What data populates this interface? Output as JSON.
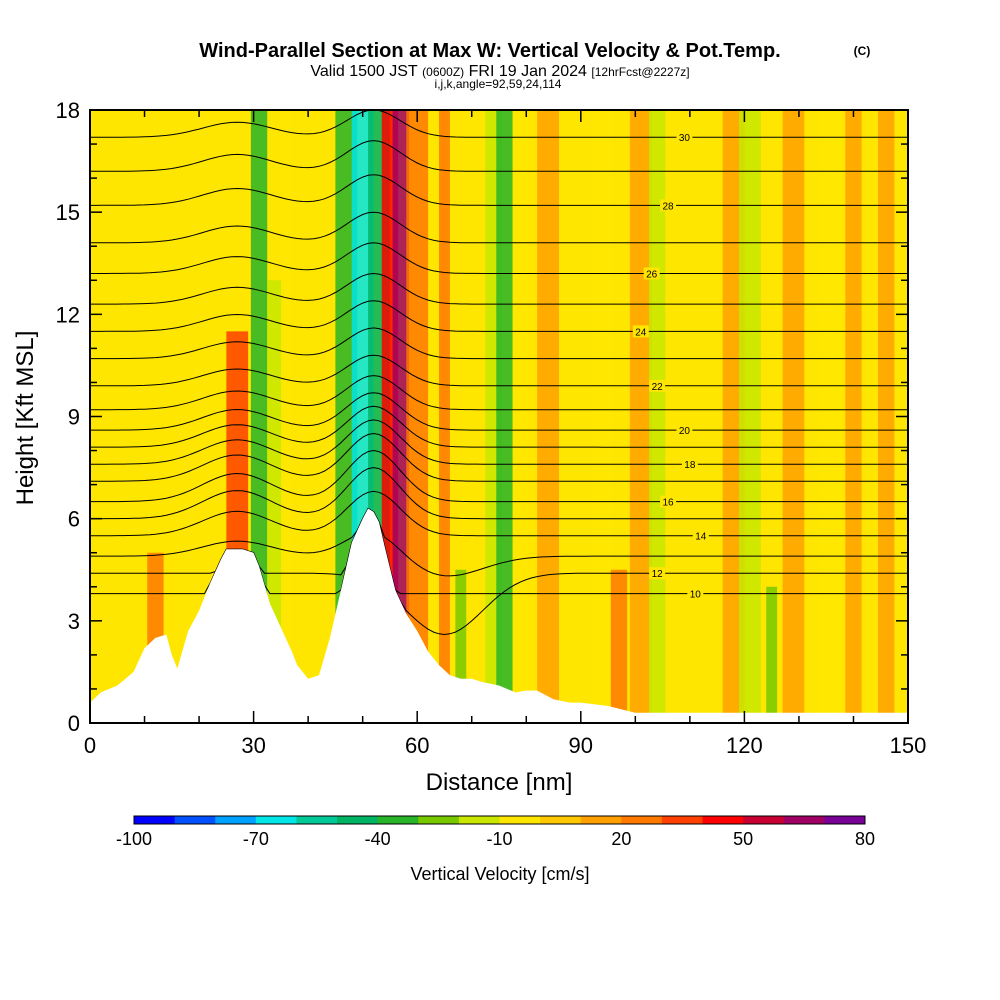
{
  "title": {
    "main": "Wind-Parallel Section at Max W: Vertical Velocity & Pot.Temp.",
    "copyright": "(C)",
    "valid_prefix": "Valid 1500 JST",
    "valid_z": "(0600Z)",
    "valid_date": "FRI 19 Jan 2024",
    "forecast": "[12hrFcst@2227z]",
    "ijk": "i,j,k,angle=92,59,24,114"
  },
  "colors": {
    "background_field": "#ffe600",
    "terrain": "#ffffff",
    "contour": "#000000",
    "frame": "#000000"
  },
  "chart_data": {
    "type": "heatmap",
    "xlabel": "Distance [nm]",
    "ylabel": "Height [Kft MSL]",
    "xlim": [
      0,
      150
    ],
    "ylim": [
      0,
      18
    ],
    "x_ticks": [
      "0",
      "30",
      "60",
      "90",
      "120",
      "150"
    ],
    "y_ticks": [
      "0",
      "3",
      "6",
      "9",
      "12",
      "15",
      "18"
    ],
    "terrain_profile": {
      "x": [
        0,
        2,
        5,
        8,
        10,
        12,
        14,
        15,
        16,
        18,
        20,
        22,
        24,
        25,
        28,
        30,
        31,
        33,
        35,
        37,
        38,
        40,
        42,
        44,
        46,
        48,
        50,
        51,
        52,
        53,
        54,
        56,
        58,
        60,
        62,
        64,
        66,
        68,
        70,
        72,
        75,
        78,
        80,
        82,
        85,
        88,
        90,
        95,
        100,
        110,
        120,
        130,
        140,
        150
      ],
      "y": [
        0.6,
        0.9,
        1.1,
        1.5,
        2.2,
        2.5,
        2.6,
        2.0,
        1.6,
        2.7,
        3.3,
        4.1,
        4.8,
        5.1,
        5.1,
        5.0,
        4.6,
        3.5,
        2.8,
        2.1,
        1.7,
        1.3,
        1.4,
        2.5,
        3.9,
        5.3,
        6.0,
        6.3,
        6.2,
        5.9,
        5.2,
        3.9,
        3.2,
        2.7,
        2.1,
        1.7,
        1.4,
        1.3,
        1.3,
        1.2,
        1.1,
        0.9,
        0.95,
        0.95,
        0.7,
        0.6,
        0.6,
        0.5,
        0.3,
        0.3,
        0.3,
        0.3,
        0.3,
        0.3
      ]
    },
    "vertical_velocity_bands": [
      {
        "x": 12,
        "width": 3,
        "top": 5.0,
        "value": 20
      },
      {
        "x": 27,
        "width": 4,
        "top": 11.5,
        "value": 30
      },
      {
        "x": 31,
        "width": 3,
        "top": 18,
        "value": -40
      },
      {
        "x": 34,
        "width": 3,
        "top": 13,
        "value": -20
      },
      {
        "x": 36,
        "width": 2,
        "top": 18,
        "value": -10
      },
      {
        "x": 47,
        "width": 4,
        "top": 18,
        "value": -40
      },
      {
        "x": 50,
        "width": 4,
        "top": 18,
        "value": -70
      },
      {
        "x": 53,
        "width": 4,
        "top": 18,
        "value": -50
      },
      {
        "x": 55,
        "width": 3,
        "top": 18,
        "value": 40
      },
      {
        "x": 57,
        "width": 3,
        "top": 18,
        "value": 60
      },
      {
        "x": 60,
        "width": 4,
        "top": 18,
        "value": 20
      },
      {
        "x": 65,
        "width": 2,
        "top": 18,
        "value": 20
      },
      {
        "x": 68,
        "width": 2,
        "top": 4.5,
        "value": -30
      },
      {
        "x": 74,
        "width": 3,
        "top": 18,
        "value": -20
      },
      {
        "x": 76,
        "width": 3,
        "top": 18,
        "value": -40
      },
      {
        "x": 79,
        "width": 3,
        "top": 18,
        "value": -10
      },
      {
        "x": 84,
        "width": 4,
        "top": 18,
        "value": 15
      },
      {
        "x": 94,
        "width": 4,
        "top": 18,
        "value": -10
      },
      {
        "x": 97,
        "width": 3,
        "top": 4.5,
        "value": 20
      },
      {
        "x": 101,
        "width": 4,
        "top": 18,
        "value": 10
      },
      {
        "x": 104,
        "width": 3,
        "top": 18,
        "value": -15
      },
      {
        "x": 118,
        "width": 4,
        "top": 18,
        "value": 15
      },
      {
        "x": 121,
        "width": 4,
        "top": 18,
        "value": -15
      },
      {
        "x": 125,
        "width": 2,
        "top": 4,
        "value": -30
      },
      {
        "x": 129,
        "width": 4,
        "top": 18,
        "value": 10
      },
      {
        "x": 136,
        "width": 5,
        "top": 18,
        "value": -10
      },
      {
        "x": 140,
        "width": 3,
        "top": 18,
        "value": 15
      },
      {
        "x": 146,
        "width": 3,
        "top": 18,
        "value": 10
      }
    ],
    "theta_contours": [
      {
        "level": 10,
        "base": 3.8,
        "mtn": 0.0,
        "left_sink": 0,
        "label": "10",
        "label_x": 111
      },
      {
        "level": 12,
        "base": 4.4,
        "mtn": 0.0,
        "left_sink": 1.8,
        "label": "12",
        "label_x": 104
      },
      {
        "level": 13,
        "base": 4.9,
        "mtn": 0.8,
        "left_sink": 0.6,
        "label": "",
        "label_x": 0
      },
      {
        "level": 14,
        "base": 5.5,
        "mtn": 1.3,
        "left_sink": 0,
        "label": "14",
        "label_x": 112
      },
      {
        "level": 15,
        "base": 6.0,
        "mtn": 1.5,
        "left_sink": 0,
        "label": "",
        "label_x": 0
      },
      {
        "level": 16,
        "base": 6.5,
        "mtn": 1.5,
        "left_sink": 0,
        "label": "16",
        "label_x": 106
      },
      {
        "level": 17,
        "base": 7.1,
        "mtn": 1.4,
        "left_sink": 0,
        "label": "",
        "label_x": 0
      },
      {
        "level": 18,
        "base": 7.6,
        "mtn": 1.3,
        "left_sink": 0,
        "label": "18",
        "label_x": 110
      },
      {
        "level": 19,
        "base": 8.1,
        "mtn": 1.2,
        "left_sink": 0,
        "label": "",
        "label_x": 0
      },
      {
        "level": 20,
        "base": 8.6,
        "mtn": 1.1,
        "left_sink": 0,
        "label": "20",
        "label_x": 109
      },
      {
        "level": 21,
        "base": 9.2,
        "mtn": 1.0,
        "left_sink": 0,
        "label": "",
        "label_x": 0
      },
      {
        "level": 22,
        "base": 9.9,
        "mtn": 0.9,
        "left_sink": 0,
        "label": "22",
        "label_x": 104
      },
      {
        "level": 23,
        "base": 10.7,
        "mtn": 0.9,
        "left_sink": 0,
        "label": "",
        "label_x": 0
      },
      {
        "level": 24,
        "base": 11.5,
        "mtn": 0.9,
        "left_sink": 0,
        "label": "24",
        "label_x": 101
      },
      {
        "level": 25,
        "base": 12.3,
        "mtn": 0.9,
        "left_sink": 0,
        "label": "",
        "label_x": 0
      },
      {
        "level": 26,
        "base": 13.2,
        "mtn": 0.9,
        "left_sink": 0,
        "label": "26",
        "label_x": 103
      },
      {
        "level": 27,
        "base": 14.1,
        "mtn": 0.9,
        "left_sink": 0,
        "label": "",
        "label_x": 0
      },
      {
        "level": 28,
        "base": 15.2,
        "mtn": 0.9,
        "left_sink": 0,
        "label": "28",
        "label_x": 106
      },
      {
        "level": 29,
        "base": 16.2,
        "mtn": 0.9,
        "left_sink": 0,
        "label": "",
        "label_x": 0
      },
      {
        "level": 30,
        "base": 17.2,
        "mtn": 0.8,
        "left_sink": 0,
        "label": "30",
        "label_x": 109
      }
    ],
    "colorbar": {
      "title": "Vertical Velocity [cm/s]",
      "min": -100,
      "max": 80,
      "step": 10,
      "tick_labels": [
        "-100",
        "-70",
        "-40",
        "-10",
        "20",
        "50",
        "80"
      ],
      "colors": [
        "#0000ff",
        "#0050ff",
        "#00a0ff",
        "#00e6e6",
        "#00c896",
        "#00b464",
        "#28b428",
        "#78c800",
        "#c8e600",
        "#ffe600",
        "#ffc800",
        "#ffa000",
        "#ff7800",
        "#ff4000",
        "#ff0000",
        "#c80032",
        "#a00064",
        "#780096"
      ]
    }
  }
}
